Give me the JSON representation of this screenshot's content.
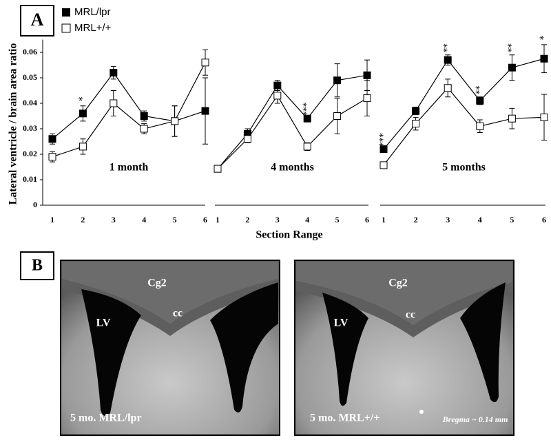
{
  "panel_a": {
    "label": "A"
  },
  "chart_data": [
    {
      "type": "line",
      "title": "1 month",
      "ylabel": "Lateral ventricle / brain area ratio",
      "categories": [
        "1",
        "2",
        "3",
        "4",
        "5",
        "6"
      ],
      "ylim": [
        0,
        0.065
      ],
      "yticks": [
        0,
        0.01,
        0.02,
        0.03,
        0.04,
        0.05,
        0.06
      ],
      "grid": false,
      "series": [
        {
          "name": "MRL/lpr",
          "color": "#000000",
          "marker_fill": "#000000",
          "values": [
            0.026,
            0.036,
            0.052,
            0.035,
            0.033,
            0.037
          ],
          "errors": [
            0.002,
            0.003,
            0.0025,
            0.002,
            0.006,
            0.013
          ]
        },
        {
          "name": "MRL+/+",
          "color": "#000000",
          "marker_fill": "#ffffff",
          "values": [
            0.019,
            0.023,
            0.04,
            0.03,
            0.033,
            0.056
          ],
          "errors": [
            0.002,
            0.003,
            0.005,
            0.002,
            0.006,
            0.005
          ]
        }
      ],
      "significance": [
        null,
        "*",
        null,
        null,
        null,
        null
      ]
    },
    {
      "type": "line",
      "title": "4 months",
      "xlabel": "Section Range",
      "categories": [
        "1",
        "2",
        "3",
        "4",
        "5",
        "6"
      ],
      "ylim": [
        0,
        0.065
      ],
      "grid": false,
      "series": [
        {
          "color": "#000000",
          "marker_fill": "#000000",
          "values": [
            0.0143,
            0.028,
            0.047,
            0.034,
            0.049,
            0.051
          ],
          "errors": [
            0.0005,
            0.002,
            0.002,
            0.001,
            0.0065,
            0.006
          ]
        },
        {
          "color": "#000000",
          "marker_fill": "#ffffff",
          "values": [
            0.0143,
            0.026,
            0.043,
            0.023,
            0.035,
            0.042
          ],
          "errors": [
            0.0005,
            0.0015,
            0.003,
            0.0015,
            0.007,
            0.007
          ]
        }
      ],
      "significance": [
        null,
        null,
        null,
        "***",
        null,
        null
      ]
    },
    {
      "type": "line",
      "title": "5 months",
      "categories": [
        "1",
        "2",
        "3",
        "4",
        "5",
        "6"
      ],
      "ylim": [
        0,
        0.065
      ],
      "grid": false,
      "series": [
        {
          "color": "#000000",
          "marker_fill": "#000000",
          "values": [
            0.022,
            0.037,
            0.057,
            0.041,
            0.054,
            0.0575
          ],
          "errors": [
            0.001,
            0.0015,
            0.002,
            0.0015,
            0.005,
            0.0055
          ]
        },
        {
          "color": "#000000",
          "marker_fill": "#ffffff",
          "values": [
            0.0157,
            0.032,
            0.046,
            0.031,
            0.034,
            0.0345
          ],
          "errors": [
            0.0005,
            0.0025,
            0.0035,
            0.0025,
            0.004,
            0.009
          ]
        }
      ],
      "significance": [
        "***",
        null,
        "**",
        "**",
        "**",
        "*"
      ]
    }
  ],
  "panel_b": {
    "label": "B",
    "images": [
      {
        "labels": [
          "Cg2",
          "cc",
          "LV"
        ],
        "caption": "5 mo. MRL/lpr"
      },
      {
        "labels": [
          "Cg2",
          "cc",
          "LV"
        ],
        "caption": "5 mo. MRL+/+",
        "note": "Bregma ~ 0.14 mm"
      }
    ]
  }
}
